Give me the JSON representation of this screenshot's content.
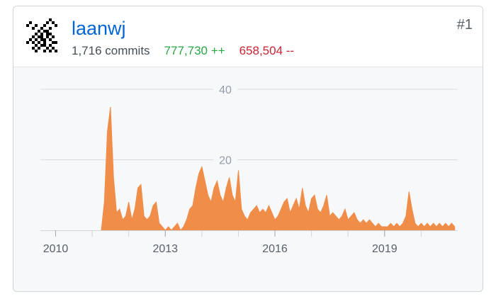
{
  "contributor": {
    "username": "laanwj",
    "commits": "1,716 commits",
    "additions": "777,730 ++",
    "deletions": "658,504 --",
    "rank": "#1",
    "avatar_icon": "pixel-identicon-icon"
  },
  "colors": {
    "link": "#0366d6",
    "additions": "#28a745",
    "deletions": "#cb2431",
    "area": "#f08d49"
  },
  "chart_data": {
    "type": "area",
    "xlabel": "",
    "ylabel": "",
    "x_range": [
      "2009-08",
      "2021-01"
    ],
    "ylim": [
      0,
      40
    ],
    "y_ticks": [
      "20",
      "40"
    ],
    "x_ticks": [
      "2010",
      "2013",
      "2016",
      "2019"
    ],
    "grid": true,
    "legend": "none",
    "series": [
      {
        "points": [
          [
            "2011-04",
            0
          ],
          [
            "2011-05",
            8
          ],
          [
            "2011-06",
            28
          ],
          [
            "2011-07",
            35
          ],
          [
            "2011-08",
            15
          ],
          [
            "2011-09",
            5
          ],
          [
            "2011-10",
            6
          ],
          [
            "2011-11",
            3
          ],
          [
            "2011-12",
            4
          ],
          [
            "2012-01",
            8
          ],
          [
            "2012-02",
            3
          ],
          [
            "2012-03",
            6
          ],
          [
            "2012-04",
            12
          ],
          [
            "2012-05",
            13
          ],
          [
            "2012-06",
            4
          ],
          [
            "2012-07",
            3
          ],
          [
            "2012-08",
            4
          ],
          [
            "2012-09",
            7
          ],
          [
            "2012-10",
            8
          ],
          [
            "2012-11",
            2
          ],
          [
            "2012-12",
            1
          ],
          [
            "2013-01",
            0
          ],
          [
            "2013-02",
            1
          ],
          [
            "2013-03",
            0
          ],
          [
            "2013-04",
            1
          ],
          [
            "2013-05",
            2
          ],
          [
            "2013-06",
            0
          ],
          [
            "2013-07",
            1
          ],
          [
            "2013-08",
            3
          ],
          [
            "2013-09",
            6
          ],
          [
            "2013-10",
            7
          ],
          [
            "2013-11",
            12
          ],
          [
            "2013-12",
            16
          ],
          [
            "2014-01",
            18
          ],
          [
            "2014-02",
            14
          ],
          [
            "2014-03",
            10
          ],
          [
            "2014-04",
            8
          ],
          [
            "2014-05",
            12
          ],
          [
            "2014-06",
            14
          ],
          [
            "2014-07",
            10
          ],
          [
            "2014-08",
            8
          ],
          [
            "2014-09",
            12
          ],
          [
            "2014-10",
            15
          ],
          [
            "2014-11",
            10
          ],
          [
            "2014-12",
            8
          ],
          [
            "2015-01",
            17
          ],
          [
            "2015-02",
            6
          ],
          [
            "2015-03",
            4
          ],
          [
            "2015-04",
            3
          ],
          [
            "2015-05",
            5
          ],
          [
            "2015-06",
            6
          ],
          [
            "2015-07",
            7
          ],
          [
            "2015-08",
            5
          ],
          [
            "2015-09",
            6
          ],
          [
            "2015-10",
            5
          ],
          [
            "2015-11",
            7
          ],
          [
            "2015-12",
            5
          ],
          [
            "2016-01",
            3
          ],
          [
            "2016-02",
            4
          ],
          [
            "2016-03",
            6
          ],
          [
            "2016-04",
            8
          ],
          [
            "2016-05",
            9
          ],
          [
            "2016-06",
            5
          ],
          [
            "2016-07",
            7
          ],
          [
            "2016-08",
            9
          ],
          [
            "2016-09",
            6
          ],
          [
            "2016-10",
            12
          ],
          [
            "2016-11",
            7
          ],
          [
            "2016-12",
            5
          ],
          [
            "2017-01",
            9
          ],
          [
            "2017-02",
            10
          ],
          [
            "2017-03",
            6
          ],
          [
            "2017-04",
            5
          ],
          [
            "2017-05",
            7
          ],
          [
            "2017-06",
            10
          ],
          [
            "2017-07",
            4
          ],
          [
            "2017-08",
            5
          ],
          [
            "2017-09",
            4
          ],
          [
            "2017-10",
            3
          ],
          [
            "2017-11",
            4
          ],
          [
            "2017-12",
            6
          ],
          [
            "2018-01",
            3
          ],
          [
            "2018-02",
            4
          ],
          [
            "2018-03",
            5
          ],
          [
            "2018-04",
            3
          ],
          [
            "2018-05",
            2
          ],
          [
            "2018-06",
            3
          ],
          [
            "2018-07",
            2
          ],
          [
            "2018-08",
            3
          ],
          [
            "2018-09",
            2
          ],
          [
            "2018-10",
            1
          ],
          [
            "2018-11",
            2
          ],
          [
            "2018-12",
            1
          ],
          [
            "2019-01",
            1
          ],
          [
            "2019-02",
            1
          ],
          [
            "2019-03",
            2
          ],
          [
            "2019-04",
            1
          ],
          [
            "2019-05",
            2
          ],
          [
            "2019-06",
            1
          ],
          [
            "2019-07",
            2
          ],
          [
            "2019-08",
            4
          ],
          [
            "2019-09",
            11
          ],
          [
            "2019-10",
            6
          ],
          [
            "2019-11",
            2
          ],
          [
            "2019-12",
            1
          ],
          [
            "2020-01",
            2
          ],
          [
            "2020-02",
            1
          ],
          [
            "2020-03",
            2
          ],
          [
            "2020-04",
            1
          ],
          [
            "2020-05",
            2
          ],
          [
            "2020-06",
            1
          ],
          [
            "2020-07",
            2
          ],
          [
            "2020-08",
            1
          ],
          [
            "2020-09",
            2
          ],
          [
            "2020-10",
            1
          ],
          [
            "2020-11",
            2
          ],
          [
            "2020-12",
            1
          ]
        ]
      }
    ]
  }
}
